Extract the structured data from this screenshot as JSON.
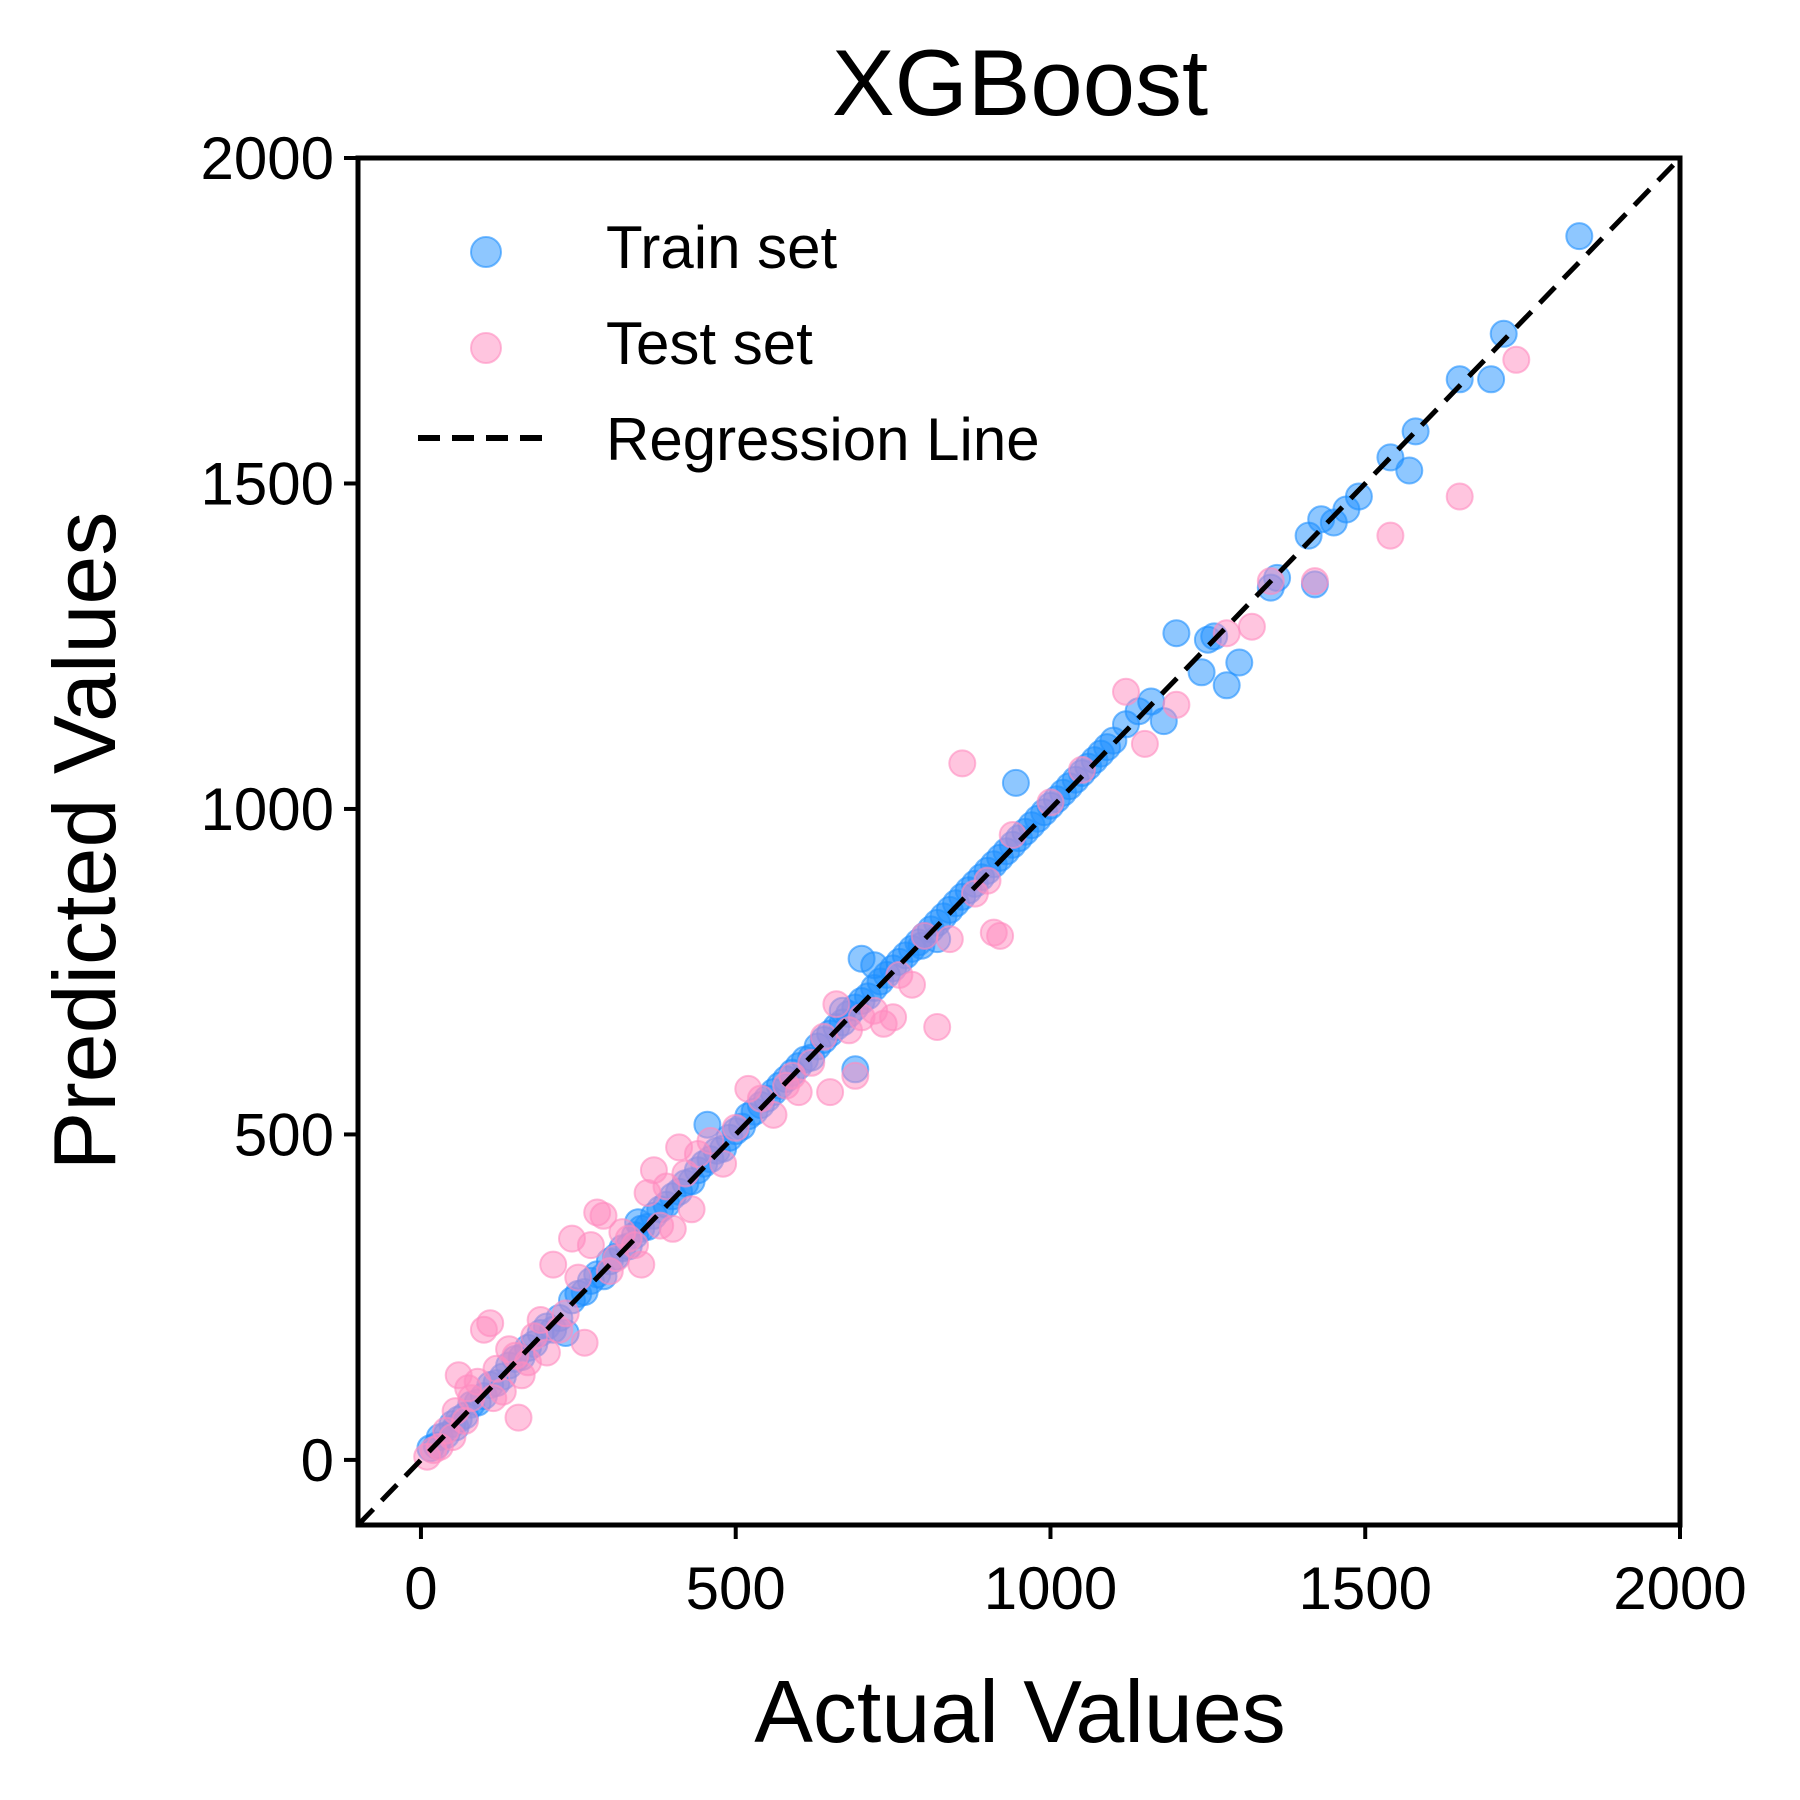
{
  "chart_data": {
    "type": "scatter",
    "title": "XGBoost",
    "xlabel": "Actual Values",
    "ylabel": "Predicted Values",
    "xlim": [
      -100,
      2000
    ],
    "ylim": [
      -100,
      2000
    ],
    "xticks": [
      0,
      500,
      1000,
      1500,
      2000
    ],
    "yticks": [
      0,
      500,
      1000,
      1500,
      2000
    ],
    "xtick_labels": [
      "0",
      "500",
      "1000",
      "1500",
      "2000"
    ],
    "ytick_labels": [
      "0",
      "500",
      "1000",
      "1500",
      "2000"
    ],
    "grid": false,
    "legend_position": "top-left",
    "legend": [
      {
        "label": "Train set",
        "kind": "marker",
        "color": "#1E90FF"
      },
      {
        "label": "Test set",
        "kind": "marker",
        "color": "#FF8CC0"
      },
      {
        "label": "Regression Line",
        "kind": "dashed-line",
        "color": "#000000"
      }
    ],
    "regression_line": {
      "name": "Regression Line",
      "from": [
        -100,
        -100
      ],
      "to": [
        2000,
        2000
      ],
      "style": "dashed",
      "color": "#000000"
    },
    "series": [
      {
        "name": "Train set",
        "color": "#1E90FF",
        "marker_opacity": 0.5,
        "points": [
          [
            15,
            18
          ],
          [
            25,
            22
          ],
          [
            30,
            35
          ],
          [
            40,
            38
          ],
          [
            50,
            55
          ],
          [
            55,
            50
          ],
          [
            60,
            62
          ],
          [
            70,
            68
          ],
          [
            80,
            85
          ],
          [
            90,
            88
          ],
          [
            100,
            98
          ],
          [
            110,
            115
          ],
          [
            120,
            118
          ],
          [
            130,
            128
          ],
          [
            140,
            145
          ],
          [
            150,
            155
          ],
          [
            160,
            158
          ],
          [
            170,
            172
          ],
          [
            180,
            178
          ],
          [
            190,
            195
          ],
          [
            200,
            205
          ],
          [
            210,
            200
          ],
          [
            220,
            218
          ],
          [
            230,
            195
          ],
          [
            240,
            245
          ],
          [
            250,
            255
          ],
          [
            260,
            258
          ],
          [
            270,
            275
          ],
          [
            280,
            285
          ],
          [
            290,
            282
          ],
          [
            300,
            305
          ],
          [
            310,
            312
          ],
          [
            320,
            325
          ],
          [
            330,
            328
          ],
          [
            340,
            345
          ],
          [
            345,
            365
          ],
          [
            350,
            355
          ],
          [
            360,
            358
          ],
          [
            370,
            375
          ],
          [
            380,
            385
          ],
          [
            390,
            392
          ],
          [
            400,
            405
          ],
          [
            410,
            412
          ],
          [
            420,
            425
          ],
          [
            430,
            428
          ],
          [
            440,
            445
          ],
          [
            450,
            455
          ],
          [
            455,
            515
          ],
          [
            460,
            462
          ],
          [
            470,
            475
          ],
          [
            480,
            478
          ],
          [
            490,
            495
          ],
          [
            500,
            505
          ],
          [
            510,
            512
          ],
          [
            520,
            528
          ],
          [
            530,
            535
          ],
          [
            540,
            545
          ],
          [
            550,
            555
          ],
          [
            560,
            565
          ],
          [
            570,
            575
          ],
          [
            580,
            585
          ],
          [
            590,
            595
          ],
          [
            600,
            605
          ],
          [
            610,
            615
          ],
          [
            620,
            618
          ],
          [
            630,
            635
          ],
          [
            640,
            645
          ],
          [
            650,
            655
          ],
          [
            660,
            665
          ],
          [
            670,
            672
          ],
          [
            680,
            685
          ],
          [
            690,
            695
          ],
          [
            700,
            705
          ],
          [
            710,
            712
          ],
          [
            720,
            725
          ],
          [
            730,
            735
          ],
          [
            740,
            745
          ],
          [
            750,
            755
          ],
          [
            760,
            765
          ],
          [
            770,
            775
          ],
          [
            780,
            785
          ],
          [
            790,
            795
          ],
          [
            800,
            805
          ],
          [
            810,
            815
          ],
          [
            820,
            825
          ],
          [
            830,
            835
          ],
          [
            840,
            845
          ],
          [
            850,
            855
          ],
          [
            860,
            865
          ],
          [
            870,
            875
          ],
          [
            880,
            885
          ],
          [
            890,
            895
          ],
          [
            900,
            905
          ],
          [
            910,
            915
          ],
          [
            920,
            925
          ],
          [
            930,
            935
          ],
          [
            940,
            945
          ],
          [
            945,
            1040
          ],
          [
            950,
            955
          ],
          [
            960,
            965
          ],
          [
            970,
            975
          ],
          [
            980,
            985
          ],
          [
            990,
            995
          ],
          [
            1000,
            1005
          ],
          [
            1010,
            1015
          ],
          [
            1020,
            1025
          ],
          [
            1030,
            1035
          ],
          [
            1040,
            1045
          ],
          [
            1050,
            1055
          ],
          [
            1060,
            1065
          ],
          [
            1070,
            1075
          ],
          [
            1080,
            1085
          ],
          [
            1090,
            1095
          ],
          [
            1100,
            1105
          ],
          [
            1120,
            1130
          ],
          [
            1140,
            1150
          ],
          [
            1160,
            1165
          ],
          [
            1180,
            1135
          ],
          [
            1200,
            1270
          ],
          [
            1240,
            1210
          ],
          [
            1250,
            1260
          ],
          [
            1260,
            1265
          ],
          [
            1280,
            1190
          ],
          [
            1300,
            1225
          ],
          [
            1350,
            1340
          ],
          [
            1360,
            1355
          ],
          [
            1410,
            1420
          ],
          [
            1420,
            1345
          ],
          [
            1430,
            1445
          ],
          [
            1450,
            1440
          ],
          [
            1470,
            1460
          ],
          [
            1490,
            1480
          ],
          [
            1540,
            1540
          ],
          [
            1570,
            1520
          ],
          [
            1580,
            1580
          ],
          [
            1650,
            1660
          ],
          [
            1700,
            1660
          ],
          [
            1720,
            1730
          ],
          [
            1840,
            1880
          ],
          [
            670,
            690
          ],
          [
            690,
            600
          ],
          [
            700,
            770
          ],
          [
            720,
            760
          ],
          [
            795,
            790
          ],
          [
            820,
            800
          ]
        ]
      },
      {
        "name": "Test set",
        "color": "#FF8CC0",
        "marker_opacity": 0.5,
        "points": [
          [
            10,
            5
          ],
          [
            20,
            15
          ],
          [
            30,
            20
          ],
          [
            40,
            45
          ],
          [
            50,
            35
          ],
          [
            55,
            75
          ],
          [
            60,
            130
          ],
          [
            70,
            60
          ],
          [
            75,
            110
          ],
          [
            80,
            95
          ],
          [
            90,
            120
          ],
          [
            100,
            200
          ],
          [
            110,
            210
          ],
          [
            115,
            95
          ],
          [
            120,
            140
          ],
          [
            130,
            105
          ],
          [
            140,
            170
          ],
          [
            150,
            160
          ],
          [
            155,
            65
          ],
          [
            160,
            130
          ],
          [
            170,
            150
          ],
          [
            180,
            190
          ],
          [
            190,
            215
          ],
          [
            200,
            165
          ],
          [
            210,
            300
          ],
          [
            220,
            200
          ],
          [
            230,
            225
          ],
          [
            240,
            340
          ],
          [
            250,
            280
          ],
          [
            260,
            180
          ],
          [
            270,
            330
          ],
          [
            280,
            380
          ],
          [
            290,
            375
          ],
          [
            300,
            290
          ],
          [
            310,
            310
          ],
          [
            320,
            350
          ],
          [
            330,
            340
          ],
          [
            340,
            330
          ],
          [
            350,
            300
          ],
          [
            360,
            410
          ],
          [
            370,
            445
          ],
          [
            380,
            360
          ],
          [
            390,
            420
          ],
          [
            400,
            355
          ],
          [
            410,
            480
          ],
          [
            420,
            440
          ],
          [
            430,
            385
          ],
          [
            440,
            470
          ],
          [
            460,
            490
          ],
          [
            480,
            455
          ],
          [
            500,
            510
          ],
          [
            520,
            570
          ],
          [
            540,
            555
          ],
          [
            560,
            530
          ],
          [
            580,
            575
          ],
          [
            590,
            590
          ],
          [
            600,
            565
          ],
          [
            620,
            610
          ],
          [
            640,
            650
          ],
          [
            650,
            565
          ],
          [
            660,
            700
          ],
          [
            680,
            660
          ],
          [
            690,
            590
          ],
          [
            700,
            680
          ],
          [
            720,
            690
          ],
          [
            735,
            670
          ],
          [
            750,
            680
          ],
          [
            760,
            745
          ],
          [
            780,
            730
          ],
          [
            800,
            805
          ],
          [
            820,
            665
          ],
          [
            840,
            800
          ],
          [
            860,
            1070
          ],
          [
            880,
            870
          ],
          [
            900,
            890
          ],
          [
            910,
            810
          ],
          [
            920,
            805
          ],
          [
            940,
            960
          ],
          [
            1000,
            1010
          ],
          [
            1050,
            1060
          ],
          [
            1120,
            1180
          ],
          [
            1150,
            1100
          ],
          [
            1200,
            1160
          ],
          [
            1280,
            1270
          ],
          [
            1320,
            1280
          ],
          [
            1350,
            1350
          ],
          [
            1420,
            1350
          ],
          [
            1540,
            1420
          ],
          [
            1650,
            1480
          ],
          [
            1740,
            1690
          ]
        ]
      }
    ]
  }
}
